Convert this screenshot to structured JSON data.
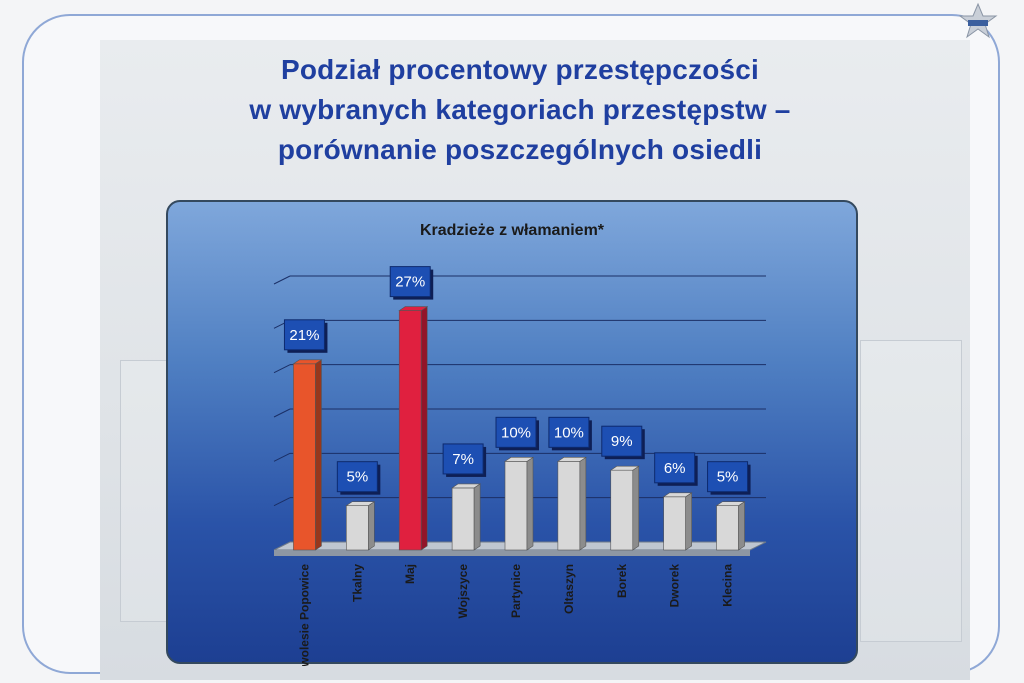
{
  "slide": {
    "title_lines": [
      "Podział procentowy przestępczości",
      "w wybranych kategoriach przestępstw –",
      "porównanie poszczególnych osiedli"
    ]
  },
  "chart_data": {
    "type": "bar",
    "title": "Kradzieże z włamaniem*",
    "categories": [
      "Nowolesie Popowice",
      "Tkalny",
      "Maj",
      "Wojszyce",
      "Partynice",
      "Oltaszyn",
      "Borek",
      "Dworek",
      "Klecina"
    ],
    "values": [
      21,
      5,
      27,
      7,
      10,
      10,
      9,
      6,
      5
    ],
    "data_labels": [
      "21%",
      "5%",
      "27%",
      "7%",
      "10%",
      "10%",
      "9%",
      "6%",
      "5%"
    ],
    "unit": "%",
    "ylim": [
      0,
      30
    ],
    "grid": true,
    "legend": "none",
    "colors": [
      "#e8552b",
      "#d8d8d8",
      "#e0203f",
      "#d8d8d8",
      "#d8d8d8",
      "#d8d8d8",
      "#d8d8d8",
      "#d8d8d8",
      "#d8d8d8"
    ]
  }
}
